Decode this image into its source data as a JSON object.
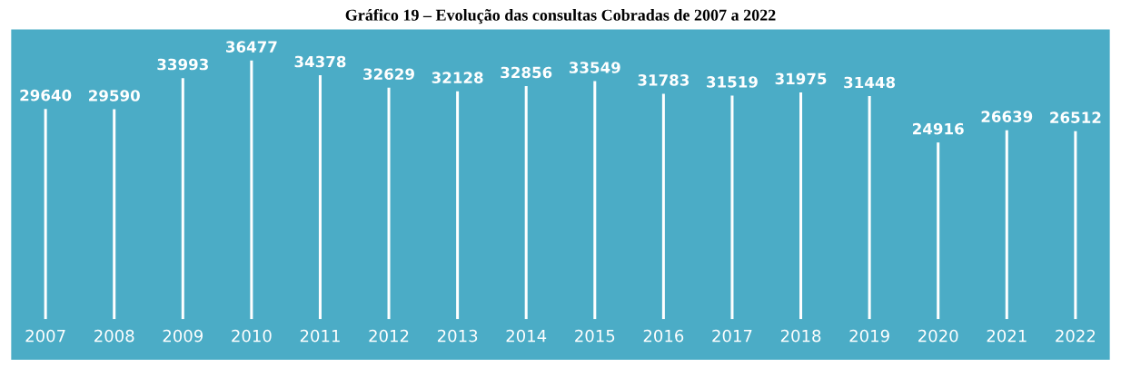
{
  "chart_data": {
    "type": "bar",
    "title": "Gráfico 19 – Evolução das consultas Cobradas de 2007 a 2022",
    "categories": [
      "2007",
      "2008",
      "2009",
      "2010",
      "2011",
      "2012",
      "2013",
      "2014",
      "2015",
      "2016",
      "2017",
      "2018",
      "2019",
      "2020",
      "2021",
      "2022"
    ],
    "values": [
      29640,
      29590,
      33993,
      36477,
      34378,
      32629,
      32128,
      32856,
      33549,
      31783,
      31519,
      31975,
      31448,
      24916,
      26639,
      26512
    ],
    "color": "#ffffff",
    "data_labels": true,
    "grid": false,
    "legend": false
  }
}
